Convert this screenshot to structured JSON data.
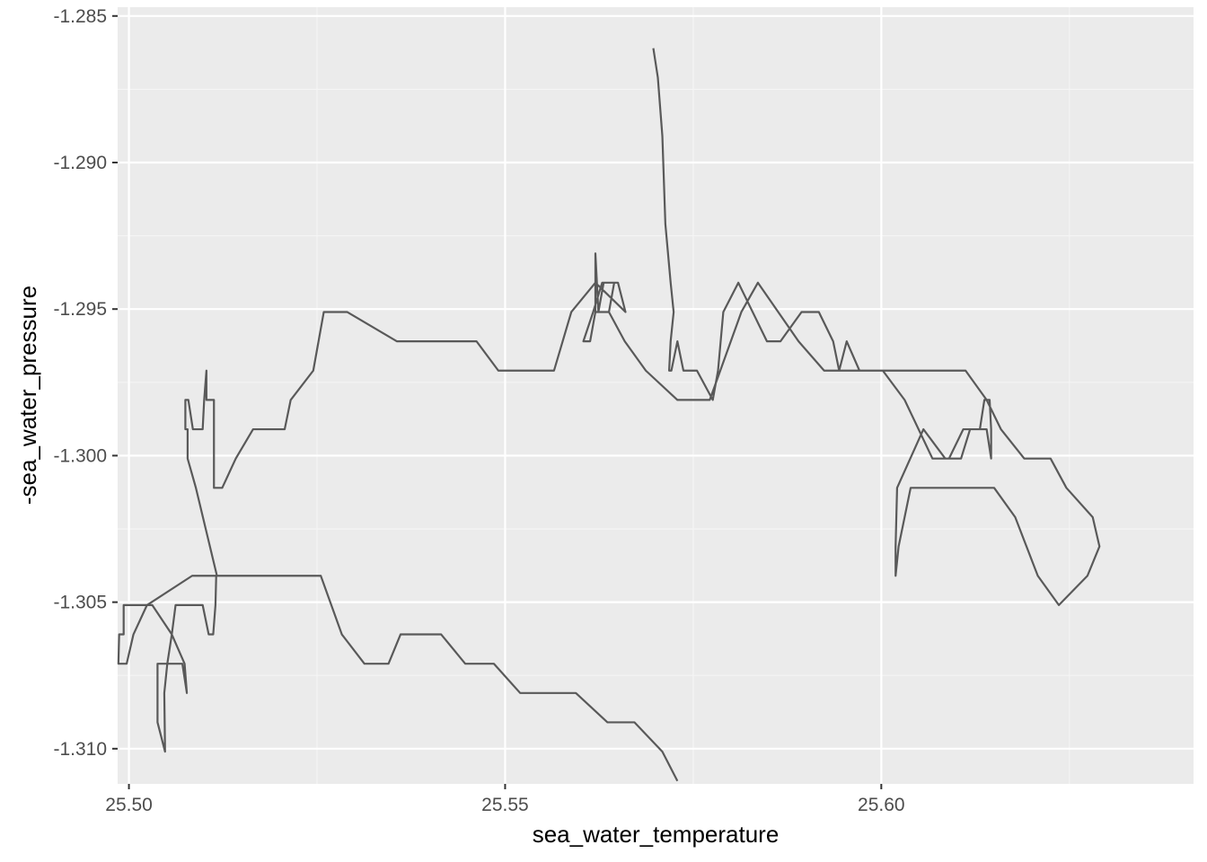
{
  "chart_data": {
    "type": "line",
    "title": "",
    "xlabel": "sea_water_temperature",
    "ylabel": "-sea_water_pressure",
    "xlim": [
      25.4985,
      25.6415
    ],
    "ylim": [
      -1.3112,
      -1.2847
    ],
    "x_ticks": [
      25.5,
      25.55,
      25.6
    ],
    "x_tick_labels": [
      "25.50",
      "25.55",
      "25.60"
    ],
    "y_ticks": [
      -1.285,
      -1.29,
      -1.295,
      -1.3,
      -1.305,
      -1.31
    ],
    "y_tick_labels": [
      "-1.285",
      "-1.290",
      "-1.295",
      "-1.300",
      "-1.305",
      "-1.310"
    ],
    "grid": true,
    "background": "#ebebeb",
    "line_color": "#595959",
    "series": [
      {
        "values": [
          [
            25.5697,
            -1.2861
          ],
          [
            25.5703,
            -1.2871
          ],
          [
            25.5709,
            -1.2891
          ],
          [
            25.5713,
            -1.2921
          ],
          [
            25.572,
            -1.2941
          ],
          [
            25.5724,
            -1.2951
          ],
          [
            25.572,
            -1.2961
          ],
          [
            25.5718,
            -1.2971
          ],
          [
            25.5721,
            -1.2971
          ],
          [
            25.5729,
            -1.2961
          ],
          [
            25.5737,
            -1.2971
          ],
          [
            25.5755,
            -1.2971
          ],
          [
            25.5776,
            -1.2981
          ],
          [
            25.5783,
            -1.2971
          ],
          [
            25.579,
            -1.2951
          ],
          [
            25.581,
            -1.2941
          ],
          [
            25.5848,
            -1.2961
          ],
          [
            25.5866,
            -1.2961
          ],
          [
            25.5894,
            -1.2951
          ],
          [
            25.5917,
            -1.2951
          ],
          [
            25.5936,
            -1.2961
          ],
          [
            25.5944,
            -1.2971
          ],
          [
            25.5954,
            -1.2961
          ],
          [
            25.5971,
            -1.2971
          ],
          [
            25.6002,
            -1.2971
          ],
          [
            25.6031,
            -1.2981
          ],
          [
            25.6068,
            -1.3001
          ],
          [
            25.609,
            -1.3001
          ],
          [
            25.6109,
            -1.2991
          ],
          [
            25.6131,
            -1.2991
          ],
          [
            25.6137,
            -1.2981
          ],
          [
            25.6144,
            -1.2981
          ],
          [
            25.6146,
            -1.2991
          ],
          [
            25.6146,
            -1.3001
          ],
          [
            25.614,
            -1.2991
          ],
          [
            25.6118,
            -1.2991
          ],
          [
            25.6106,
            -1.3001
          ],
          [
            25.6085,
            -1.3001
          ],
          [
            25.6056,
            -1.2991
          ],
          [
            25.6021,
            -1.3011
          ],
          [
            25.6019,
            -1.3031
          ],
          [
            25.6019,
            -1.3041
          ],
          [
            25.6023,
            -1.3031
          ],
          [
            25.6039,
            -1.3011
          ],
          [
            25.615,
            -1.3011
          ],
          [
            25.6178,
            -1.3021
          ],
          [
            25.6208,
            -1.3041
          ],
          [
            25.6236,
            -1.3051
          ],
          [
            25.6274,
            -1.3041
          ],
          [
            25.629,
            -1.3031
          ],
          [
            25.6281,
            -1.3021
          ],
          [
            25.6246,
            -1.3011
          ],
          [
            25.6225,
            -1.3001
          ],
          [
            25.619,
            -1.3001
          ],
          [
            25.6159,
            -1.2991
          ],
          [
            25.614,
            -1.2981
          ],
          [
            25.6112,
            -1.2971
          ],
          [
            25.6003,
            -1.2971
          ],
          [
            25.5924,
            -1.2971
          ],
          [
            25.589,
            -1.2961
          ],
          [
            25.5836,
            -1.2941
          ],
          [
            25.5814,
            -1.2951
          ],
          [
            25.5772,
            -1.2981
          ],
          [
            25.5729,
            -1.2981
          ],
          [
            25.5687,
            -1.2971
          ],
          [
            25.5659,
            -1.2961
          ],
          [
            25.5638,
            -1.2951
          ],
          [
            25.562,
            -1.2951
          ],
          [
            25.5613,
            -1.2961
          ],
          [
            25.5604,
            -1.2961
          ],
          [
            25.5617,
            -1.2951
          ],
          [
            25.5629,
            -1.2941
          ],
          [
            25.5645,
            -1.2941
          ],
          [
            25.5638,
            -1.2951
          ],
          [
            25.5626,
            -1.2951
          ],
          [
            25.562,
            -1.2951
          ],
          [
            25.562,
            -1.2931
          ],
          [
            25.5624,
            -1.2951
          ],
          [
            25.5631,
            -1.2941
          ],
          [
            25.565,
            -1.2941
          ],
          [
            25.566,
            -1.2951
          ],
          [
            25.562,
            -1.2941
          ],
          [
            25.5588,
            -1.2951
          ],
          [
            25.5565,
            -1.2971
          ],
          [
            25.5491,
            -1.2971
          ],
          [
            25.5462,
            -1.2961
          ],
          [
            25.5356,
            -1.2961
          ],
          [
            25.529,
            -1.2951
          ],
          [
            25.5259,
            -1.2951
          ],
          [
            25.5245,
            -1.2971
          ],
          [
            25.5215,
            -1.2981
          ],
          [
            25.5207,
            -1.2991
          ],
          [
            25.5165,
            -1.2991
          ],
          [
            25.5142,
            -1.3001
          ],
          [
            25.5124,
            -1.3011
          ],
          [
            25.5113,
            -1.3011
          ],
          [
            25.5113,
            -1.3001
          ],
          [
            25.5113,
            -1.2981
          ],
          [
            25.5103,
            -1.2981
          ],
          [
            25.5103,
            -1.2971
          ],
          [
            25.51,
            -1.2981
          ],
          [
            25.5098,
            -1.2991
          ],
          [
            25.5085,
            -1.2991
          ],
          [
            25.5079,
            -1.2981
          ],
          [
            25.5075,
            -1.2981
          ],
          [
            25.5075,
            -1.2991
          ],
          [
            25.5078,
            -1.2991
          ],
          [
            25.5078,
            -1.3001
          ],
          [
            25.5089,
            -1.3011
          ],
          [
            25.5117,
            -1.3041
          ],
          [
            25.5104,
            -1.3041
          ],
          [
            25.5084,
            -1.3041
          ],
          [
            25.5024,
            -1.3051
          ],
          [
            25.5006,
            -1.3061
          ],
          [
            25.4997,
            -1.3071
          ],
          [
            25.4986,
            -1.3071
          ],
          [
            25.4987,
            -1.3061
          ],
          [
            25.4993,
            -1.3061
          ],
          [
            25.4993,
            -1.3051
          ],
          [
            25.5031,
            -1.3051
          ],
          [
            25.5057,
            -1.3061
          ],
          [
            25.5074,
            -1.3071
          ],
          [
            25.5077,
            -1.3081
          ],
          [
            25.5071,
            -1.3071
          ],
          [
            25.5063,
            -1.3071
          ],
          [
            25.5038,
            -1.3071
          ],
          [
            25.5038,
            -1.3091
          ],
          [
            25.5048,
            -1.3101
          ],
          [
            25.5047,
            -1.3081
          ],
          [
            25.5051,
            -1.3071
          ],
          [
            25.5057,
            -1.3061
          ],
          [
            25.5062,
            -1.3051
          ],
          [
            25.5098,
            -1.3051
          ],
          [
            25.5106,
            -1.3061
          ],
          [
            25.5112,
            -1.3061
          ],
          [
            25.5115,
            -1.3051
          ],
          [
            25.5116,
            -1.3041
          ],
          [
            25.5255,
            -1.3041
          ],
          [
            25.5283,
            -1.3061
          ],
          [
            25.5313,
            -1.3071
          ],
          [
            25.5345,
            -1.3071
          ],
          [
            25.5361,
            -1.3061
          ],
          [
            25.5415,
            -1.3061
          ],
          [
            25.5447,
            -1.3071
          ],
          [
            25.5485,
            -1.3071
          ],
          [
            25.552,
            -1.3081
          ],
          [
            25.5594,
            -1.3081
          ],
          [
            25.5636,
            -1.3091
          ],
          [
            25.5672,
            -1.3091
          ],
          [
            25.5709,
            -1.3101
          ],
          [
            25.5729,
            -1.3111
          ]
        ]
      }
    ]
  }
}
